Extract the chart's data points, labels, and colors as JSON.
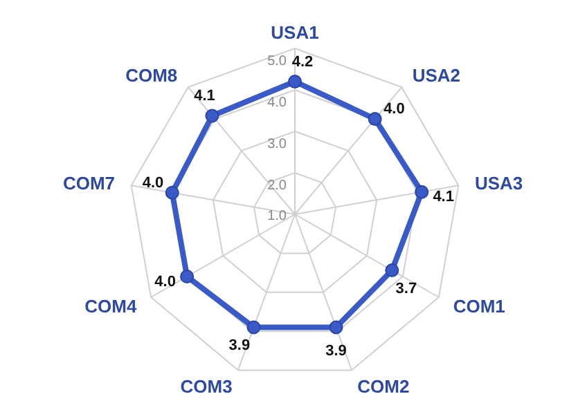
{
  "chart_data": {
    "type": "radar",
    "categories": [
      "USA1",
      "USA2",
      "USA3",
      "COM1",
      "COM2",
      "COM3",
      "COM4",
      "COM7",
      "COM8"
    ],
    "series": [
      {
        "color": "#3a5bc7",
        "values": [
          4.2,
          4.0,
          4.1,
          3.7,
          3.9,
          3.9,
          4.0,
          4.0,
          4.1
        ]
      }
    ],
    "ylim": [
      1,
      5
    ],
    "yticks": [
      {
        "value": 1,
        "label": "1.0"
      },
      {
        "value": 2,
        "label": "2.0"
      },
      {
        "value": 3,
        "label": "3.0"
      },
      {
        "value": 4,
        "label": "4.0"
      },
      {
        "value": 5,
        "label": "5.0"
      }
    ],
    "value_labels": [
      "4.2",
      "4.0",
      "4.1",
      "3.7",
      "3.9",
      "3.9",
      "4.0",
      "4.0",
      "4.1"
    ],
    "marker": "circle",
    "grid": true
  }
}
